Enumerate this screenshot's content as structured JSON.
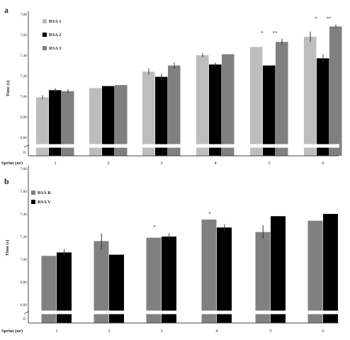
{
  "chart_data": [
    {
      "panel_label": "a",
      "type": "bar",
      "categories": [
        "1",
        "2",
        "3",
        "4",
        "5",
        "6"
      ],
      "xlabel": "Sprint (nr)",
      "ylabel": "Time (s)",
      "ylim": [
        6.4,
        7.8
      ],
      "yticks": [
        "6,60",
        "6,80",
        "7,00",
        "7,20",
        "7,40",
        "7,60",
        "7,80"
      ],
      "axis_break": "0",
      "grid": false,
      "legend_position": "top-left",
      "series": [
        {
          "name": "RSA 1",
          "color": "#bdbdbd",
          "values": [
            6.99,
            7.08,
            7.24,
            7.4,
            7.48,
            7.58
          ],
          "errors": [
            0.02,
            0.0,
            0.03,
            0.02,
            0.0,
            0.05
          ]
        },
        {
          "name": "RSA 2",
          "color": "#000000",
          "values": [
            7.06,
            7.1,
            7.19,
            7.31,
            7.3,
            7.37
          ],
          "errors": [
            0.02,
            0.0,
            0.03,
            0.02,
            0.0,
            0.04
          ]
        },
        {
          "name": "RSA 3",
          "color": "#808080",
          "values": [
            7.05,
            7.11,
            7.3,
            7.41,
            7.53,
            7.68
          ],
          "errors": [
            0.02,
            0.0,
            0.03,
            0.0,
            0.03,
            0.02
          ]
        }
      ],
      "annotations": [
        {
          "category": "5",
          "text": "*"
        },
        {
          "category": "5",
          "text": "**"
        },
        {
          "category": "6",
          "text": "*"
        },
        {
          "category": "6",
          "text": "**"
        }
      ]
    },
    {
      "panel_label": "b",
      "type": "bar",
      "categories": [
        "1",
        "2",
        "3",
        "4",
        "5",
        "6"
      ],
      "xlabel": "Sprint (nr)",
      "ylabel": "Time (s)",
      "ylim": [
        6.48,
        7.6
      ],
      "yticks": [
        "6,60",
        "6,80",
        "7,00",
        "7,20",
        "7,40",
        "7,60",
        "7,80"
      ],
      "axis_break": "0",
      "grid": false,
      "legend_position": "top-left",
      "series": [
        {
          "name": "RSA R",
          "color": "#808080",
          "values": [
            7.03,
            7.16,
            7.19,
            7.35,
            7.24,
            7.34
          ],
          "errors": [
            0.0,
            0.07,
            0.0,
            0.0,
            0.06,
            0.0
          ]
        },
        {
          "name": "RSA V",
          "color": "#000000",
          "values": [
            7.06,
            7.04,
            7.2,
            7.28,
            7.38,
            7.4
          ],
          "errors": [
            0.03,
            0.0,
            0.03,
            0.03,
            0.0,
            0.0
          ]
        }
      ],
      "annotations": [
        {
          "category": "3",
          "text": "*"
        },
        {
          "category": "4",
          "text": "*"
        }
      ]
    }
  ]
}
